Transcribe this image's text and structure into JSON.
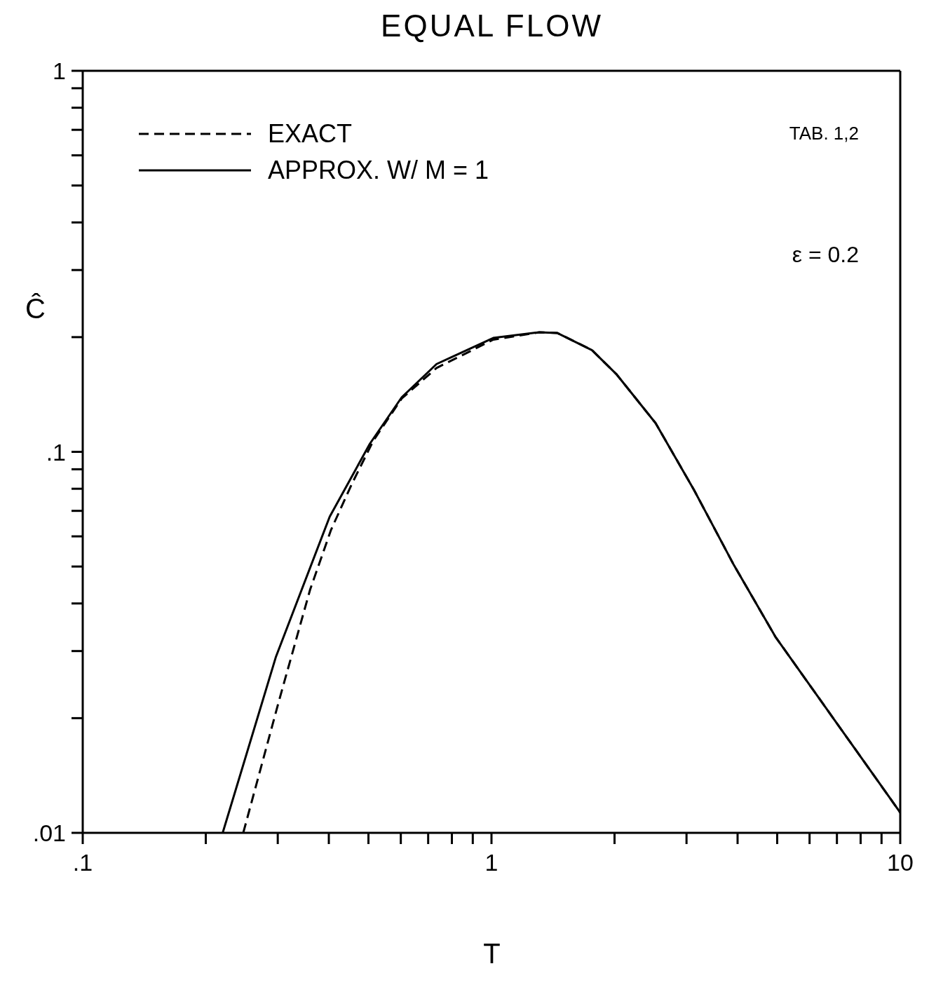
{
  "chart_data": {
    "type": "line",
    "title": "EQUAL FLOW",
    "xlabel": "T",
    "ylabel": "Ĉ",
    "log": "xy",
    "legend": "top left",
    "marker": "none",
    "xlim": [
      0.1,
      10
    ],
    "ylim": [
      0.01,
      1
    ],
    "xticks": [
      {
        "value": 0.1,
        "label": ".1"
      },
      {
        "value": 0.2,
        "label": null
      },
      {
        "value": 0.3,
        "label": null
      },
      {
        "value": 0.4,
        "label": null
      },
      {
        "value": 0.5,
        "label": null
      },
      {
        "value": 0.6,
        "label": null
      },
      {
        "value": 0.7,
        "label": null
      },
      {
        "value": 0.8,
        "label": null
      },
      {
        "value": 0.9,
        "label": null
      },
      1,
      {
        "value": 2,
        "label": null
      },
      {
        "value": 3,
        "label": null
      },
      {
        "value": 4,
        "label": null
      },
      {
        "value": 5,
        "label": null
      },
      {
        "value": 6,
        "label": null
      },
      {
        "value": 7,
        "label": null
      },
      {
        "value": 8,
        "label": null
      },
      {
        "value": 9,
        "label": null
      },
      10
    ],
    "yticks": [
      {
        "value": 0.01,
        "label": ".01"
      },
      {
        "value": 0.02,
        "label": null
      },
      {
        "value": 0.03,
        "label": null
      },
      {
        "value": 0.04,
        "label": null
      },
      {
        "value": 0.05,
        "label": null
      },
      {
        "value": 0.06,
        "label": null
      },
      {
        "value": 0.07,
        "label": null
      },
      {
        "value": 0.08,
        "label": null
      },
      {
        "value": 0.09,
        "label": null
      },
      {
        "value": 0.1,
        "label": ".1"
      },
      {
        "value": 0.2,
        "label": null
      },
      {
        "value": 0.3,
        "label": null
      },
      {
        "value": 0.4,
        "label": null
      },
      {
        "value": 0.5,
        "label": null
      },
      {
        "value": 0.6,
        "label": null
      },
      {
        "value": 0.7,
        "label": null
      },
      {
        "value": 0.8,
        "label": null
      },
      {
        "value": 0.9,
        "label": null
      },
      1
    ],
    "annotations": [
      "TAB. 1,2",
      "ε = 0.2"
    ],
    "series": [
      {
        "name": "EXACT",
        "color": "#000000",
        "line_style": "dashed",
        "x": [
          0.247,
          0.301,
          0.36,
          0.405,
          0.456,
          0.514,
          0.603,
          0.734,
          1.01,
          1.31,
          1.45,
          1.76,
          2.02,
          2.52,
          3.13,
          3.9,
          4.95,
          6.81,
          8.64,
          10
        ],
        "values": [
          0.01,
          0.0219,
          0.0435,
          0.0624,
          0.0826,
          0.107,
          0.138,
          0.166,
          0.197,
          0.206,
          0.205,
          0.185,
          0.16,
          0.119,
          0.0794,
          0.0509,
          0.0327,
          0.0202,
          0.0141,
          0.0113
        ]
      },
      {
        "name": "APPROX. W/ M = 1",
        "color": "#000000",
        "line_style": "solid",
        "x": [
          0.22,
          0.297,
          0.402,
          0.504,
          0.603,
          0.734,
          1.01,
          1.31,
          1.45,
          1.76,
          2.02,
          2.52,
          3.13,
          3.9,
          4.95,
          6.81,
          8.64,
          10
        ],
        "values": [
          0.01,
          0.029,
          0.0676,
          0.105,
          0.139,
          0.17,
          0.199,
          0.206,
          0.205,
          0.185,
          0.16,
          0.119,
          0.0794,
          0.0509,
          0.0327,
          0.0202,
          0.0141,
          0.0113
        ]
      }
    ]
  }
}
